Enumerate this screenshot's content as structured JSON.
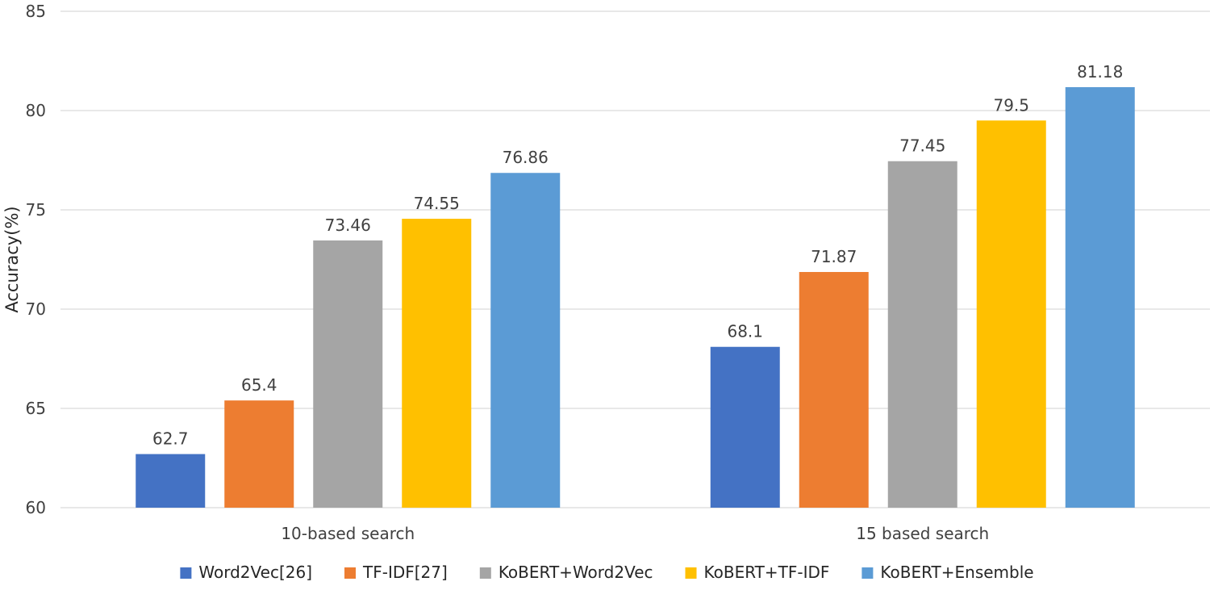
{
  "chart_data": {
    "type": "bar",
    "title": "",
    "xlabel": "",
    "ylabel": "Accuracy(%)",
    "ylim": [
      60,
      85
    ],
    "yticks": [
      60,
      65,
      70,
      75,
      80,
      85
    ],
    "grid": true,
    "legend_position": "bottom",
    "categories": [
      "10-based search",
      "15 based search"
    ],
    "series": [
      {
        "name": "Word2Vec[26]",
        "color": "#4472C4",
        "values": [
          62.7,
          68.1
        ]
      },
      {
        "name": "TF-IDF[27]",
        "color": "#ED7D31",
        "values": [
          65.4,
          71.87
        ]
      },
      {
        "name": "KoBERT+Word2Vec",
        "color": "#A5A5A5",
        "values": [
          73.46,
          77.45
        ]
      },
      {
        "name": "KoBERT+TF-IDF",
        "color": "#FFC000",
        "values": [
          74.55,
          79.5
        ]
      },
      {
        "name": "KoBERT+Ensemble",
        "color": "#5B9BD5",
        "values": [
          76.86,
          81.18
        ]
      }
    ]
  }
}
